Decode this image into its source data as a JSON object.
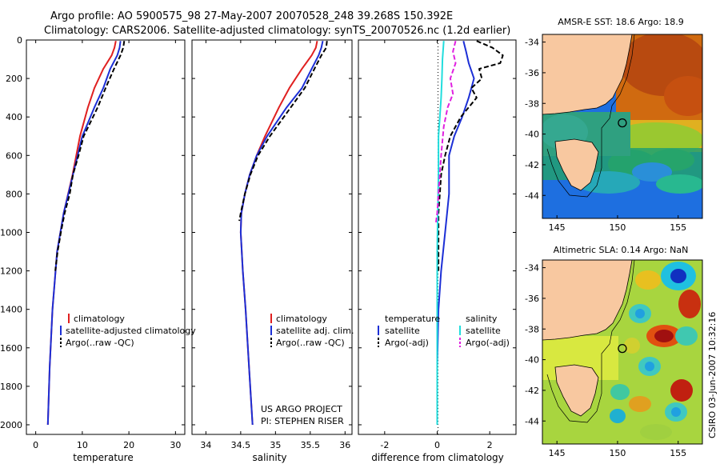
{
  "header": {
    "line1": "Argo profile: AO 5900575_98 27-May-2007 20070528_248 39.268S 150.392E",
    "line2": "Climatology: CARS2006. Satellite-adjusted climatology: synTS_20070526.nc (1.2d earlier)"
  },
  "footer": {
    "credit": "CSIRO 03-Jun-2007 10:32:16",
    "project_line1": "US ARGO PROJECT",
    "project_line2": "PI: STEPHEN RISER"
  },
  "colors": {
    "climatology": "#e02020",
    "satellite": "#1c2fd6",
    "argo": "#000000",
    "sat_diff": "#22dddd",
    "argo_sal_diff": "#e020e0",
    "land": "#f8c8a0"
  },
  "chart_data": [
    {
      "id": "temperature",
      "type": "line",
      "xlabel": "temperature",
      "ylabel": "",
      "xlim": [
        -2,
        32
      ],
      "ylim": [
        2050,
        0
      ],
      "x_ticks": [
        "0",
        "10",
        "20",
        "30"
      ],
      "x_tick_values": [
        0,
        10,
        20,
        30
      ],
      "y_ticks": [
        "0",
        "200",
        "400",
        "600",
        "800",
        "1000",
        "1200",
        "1400",
        "1600",
        "1800",
        "2000"
      ],
      "y_tick_values": [
        0,
        200,
        400,
        600,
        800,
        1000,
        1200,
        1400,
        1600,
        1800,
        2000
      ],
      "legend": [
        "climatology",
        "satellite-adjusted climatology",
        "Argo(..raw -QC)"
      ],
      "series": [
        {
          "name": "climatology",
          "depth": [
            5,
            40,
            80,
            150,
            250,
            350,
            500,
            700,
            900,
            1100,
            1400,
            1700,
            2000
          ],
          "values": [
            17.2,
            16.9,
            16.3,
            14.5,
            12.6,
            11.2,
            9.5,
            7.9,
            6.0,
            4.6,
            3.6,
            3.0,
            2.6
          ]
        },
        {
          "name": "satellite-adjusted climatology",
          "depth": [
            5,
            40,
            80,
            150,
            250,
            350,
            500,
            700,
            900,
            1100,
            1400,
            1700,
            2000
          ],
          "values": [
            18.2,
            18.0,
            17.5,
            16.0,
            14.5,
            12.6,
            10.0,
            8.0,
            6.0,
            4.6,
            3.6,
            3.0,
            2.6
          ]
        },
        {
          "name": "Argo(..raw -QC)",
          "depth": [
            5,
            40,
            80,
            150,
            250,
            350,
            500,
            600,
            700,
            800,
            900,
            1000,
            1100,
            1200
          ],
          "values": [
            19.0,
            18.8,
            18.2,
            16.8,
            15.0,
            13.3,
            10.3,
            9.2,
            8.0,
            7.3,
            6.2,
            5.4,
            4.7,
            4.2
          ]
        }
      ]
    },
    {
      "id": "salinity",
      "type": "line",
      "xlabel": "salinity",
      "ylabel": "",
      "xlim": [
        33.8,
        36.1
      ],
      "ylim": [
        2050,
        0
      ],
      "x_ticks": [
        "34",
        "34.5",
        "35",
        "35.5",
        "36"
      ],
      "x_tick_values": [
        34,
        34.5,
        35,
        35.5,
        36
      ],
      "legend": [
        "climatology",
        "satellite adj. clim.",
        "Argo(..raw -QC)"
      ],
      "series": [
        {
          "name": "climatology",
          "depth": [
            5,
            40,
            80,
            150,
            250,
            350,
            500,
            600,
            700,
            800,
            900,
            1000,
            1200,
            1400,
            1700,
            2000
          ],
          "values": [
            35.6,
            35.58,
            35.52,
            35.38,
            35.2,
            35.05,
            34.85,
            34.73,
            34.63,
            34.56,
            34.51,
            34.5,
            34.53,
            34.57,
            34.62,
            34.67
          ]
        },
        {
          "name": "satellite adj. clim.",
          "depth": [
            5,
            40,
            80,
            150,
            250,
            350,
            500,
            600,
            700,
            800,
            900,
            1000,
            1200,
            1400,
            1700,
            2000
          ],
          "values": [
            35.68,
            35.66,
            35.62,
            35.52,
            35.38,
            35.16,
            34.88,
            34.73,
            34.63,
            34.56,
            34.51,
            34.5,
            34.53,
            34.57,
            34.62,
            34.67
          ]
        },
        {
          "name": "Argo(..raw -QC)",
          "depth": [
            5,
            40,
            80,
            150,
            250,
            350,
            500,
            600,
            700,
            800,
            900,
            940
          ],
          "values": [
            35.74,
            35.73,
            35.66,
            35.56,
            35.42,
            35.22,
            34.92,
            34.75,
            34.64,
            34.56,
            34.5,
            34.48
          ]
        }
      ]
    },
    {
      "id": "difference",
      "type": "line",
      "xlabel": "difference from climatology",
      "ylabel": "",
      "xlim": [
        -3,
        3
      ],
      "ylim": [
        2050,
        0
      ],
      "x_ticks": [
        "-2",
        "0",
        "2"
      ],
      "x_tick_values": [
        -2,
        0,
        2
      ],
      "legend_temperature": {
        "title": "temperature",
        "items": [
          "satellite",
          "Argo(-adj)"
        ]
      },
      "legend_salinity": {
        "title": "salinity",
        "items": [
          "satellite",
          "Argo(-adj)"
        ]
      },
      "series": [
        {
          "name": "temperature satellite",
          "depth": [
            5,
            60,
            120,
            200,
            300,
            400,
            500,
            600,
            800,
            1000,
            1200,
            1400,
            1700,
            2000
          ],
          "values": [
            1.0,
            1.1,
            1.2,
            1.4,
            1.2,
            0.95,
            0.65,
            0.45,
            0.45,
            0.3,
            0.15,
            0.05,
            0.0,
            0.0
          ]
        },
        {
          "name": "temperature Argo(-adj)",
          "depth": [
            5,
            40,
            80,
            120,
            150,
            200,
            250,
            300,
            400,
            500,
            600,
            700,
            800,
            900,
            1000,
            1100,
            1200
          ],
          "values": [
            1.5,
            2.1,
            2.5,
            2.4,
            1.6,
            1.7,
            1.3,
            1.5,
            0.9,
            0.5,
            0.3,
            0.15,
            0.1,
            0.05,
            0.05,
            0.05,
            0.05
          ]
        },
        {
          "name": "salinity satellite",
          "depth": [
            5,
            100,
            200,
            300,
            400,
            500,
            700,
            900,
            1100,
            1400,
            1700,
            2000
          ],
          "values": [
            0.25,
            0.2,
            0.18,
            0.15,
            0.1,
            0.05,
            0.05,
            0.02,
            0.0,
            0.0,
            0.0,
            0.0
          ]
        },
        {
          "name": "salinity Argo(-adj)",
          "depth": [
            5,
            60,
            120,
            200,
            280,
            350,
            450,
            600,
            800,
            900,
            950
          ],
          "values": [
            0.7,
            0.6,
            0.7,
            0.5,
            0.6,
            0.4,
            0.25,
            0.15,
            0.05,
            0.0,
            -0.05
          ]
        }
      ]
    }
  ],
  "maps": [
    {
      "id": "sst",
      "title": "AMSR-E SST: 18.6 Argo: 18.9",
      "x_ticks": [
        "145",
        "150",
        "155"
      ],
      "x_tick_values": [
        145,
        150,
        155
      ],
      "xlim": [
        143.8,
        157
      ],
      "y_ticks": [
        "-34",
        "-36",
        "-38",
        "-40",
        "-42",
        "-44"
      ],
      "y_tick_values": [
        -34,
        -36,
        -38,
        -40,
        -42,
        -44
      ],
      "ylim": [
        -45.5,
        -33.5
      ],
      "float_position": {
        "lon": 150.392,
        "lat": -39.268
      }
    },
    {
      "id": "sla",
      "title": "Altimetric SLA: 0.14 Argo: NaN",
      "x_ticks": [
        "145",
        "150",
        "155"
      ],
      "x_tick_values": [
        145,
        150,
        155
      ],
      "xlim": [
        143.8,
        157
      ],
      "y_ticks": [
        "-34",
        "-36",
        "-38",
        "-40",
        "-42",
        "-44"
      ],
      "y_tick_values": [
        -34,
        -36,
        -38,
        -40,
        -42,
        -44
      ],
      "ylim": [
        -45.5,
        -33.5
      ],
      "float_position": {
        "lon": 150.392,
        "lat": -39.268
      }
    }
  ]
}
